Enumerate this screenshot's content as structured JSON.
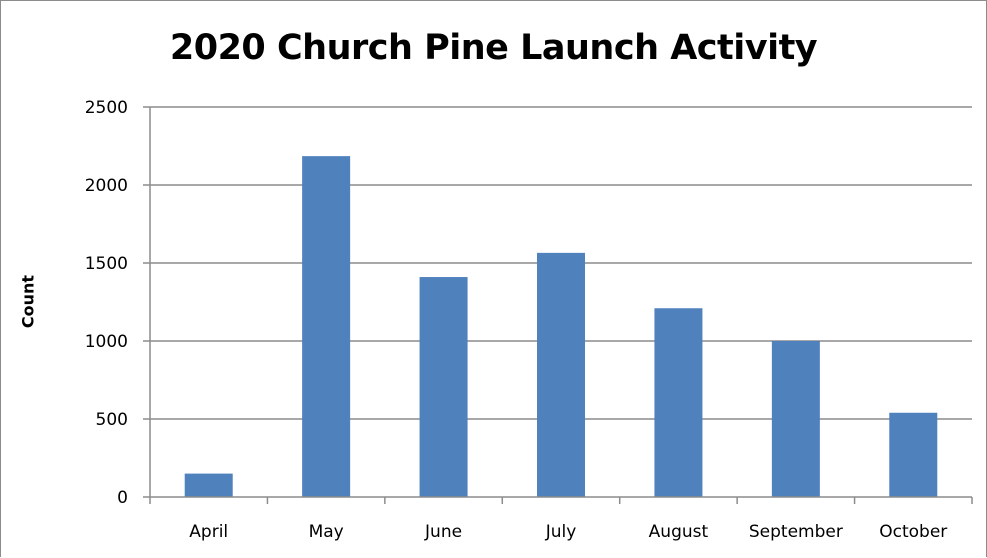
{
  "chart_data": {
    "type": "bar",
    "title": "2020 Church Pine Launch Activity",
    "xlabel": "",
    "ylabel": "Count",
    "categories": [
      "April",
      "May",
      "June",
      "July",
      "August",
      "September",
      "October"
    ],
    "values": [
      150,
      2185,
      1410,
      1565,
      1210,
      1000,
      540
    ],
    "ylim": [
      0,
      2500
    ],
    "yticks": [
      "0",
      "500",
      "1000",
      "1500",
      "2000",
      "2500"
    ],
    "ytick_values": [
      0,
      500,
      1000,
      1500,
      2000,
      2500
    ],
    "grid": true,
    "legend": "none",
    "bar_color": "#4f81bd",
    "grid_color": "#8c8c8c"
  }
}
